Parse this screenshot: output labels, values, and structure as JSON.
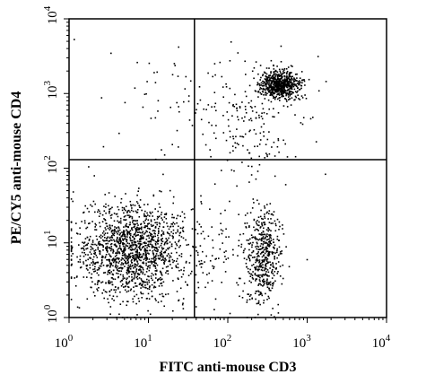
{
  "chart_data": {
    "type": "scatter",
    "subtype": "flow-cytometry-dot-plot",
    "xlabel": "FITC anti-mouse CD3",
    "ylabel": "PE/CY5 anti-mouse CD4",
    "x_scale": "log",
    "y_scale": "log",
    "xlim": [
      1,
      10000
    ],
    "ylim": [
      1,
      10000
    ],
    "x_ticks": [
      {
        "base": "10",
        "exp": "0",
        "value": 1
      },
      {
        "base": "10",
        "exp": "1",
        "value": 10
      },
      {
        "base": "10",
        "exp": "2",
        "value": 100
      },
      {
        "base": "10",
        "exp": "3",
        "value": 1000
      },
      {
        "base": "10",
        "exp": "4",
        "value": 10000
      }
    ],
    "y_ticks": [
      {
        "base": "10",
        "exp": "0",
        "value": 1
      },
      {
        "base": "10",
        "exp": "1",
        "value": 10
      },
      {
        "base": "10",
        "exp": "2",
        "value": 100
      },
      {
        "base": "10",
        "exp": "3",
        "value": 1000
      },
      {
        "base": "10",
        "exp": "4",
        "value": 10000
      }
    ],
    "quadrant_gates": {
      "x": 38,
      "y": 130
    },
    "populations": [
      {
        "center": [
          6,
          8
        ],
        "spread_decades": [
          0.35,
          0.32
        ],
        "count": 1500
      },
      {
        "center": [
          280,
          7
        ],
        "spread_decades": [
          0.1,
          0.32
        ],
        "count": 450
      },
      {
        "center": [
          450,
          1350
        ],
        "spread_decades": [
          0.12,
          0.09
        ],
        "count": 650
      },
      {
        "center": [
          180,
          450
        ],
        "spread_decades": [
          0.35,
          0.4
        ],
        "count": 220
      },
      {
        "center": [
          12,
          700
        ],
        "spread_decades": [
          0.45,
          0.45
        ],
        "count": 35
      },
      {
        "center": [
          100,
          6
        ],
        "spread_decades": [
          0.4,
          0.4
        ],
        "count": 120
      }
    ],
    "grid": false,
    "color": "#000000"
  }
}
